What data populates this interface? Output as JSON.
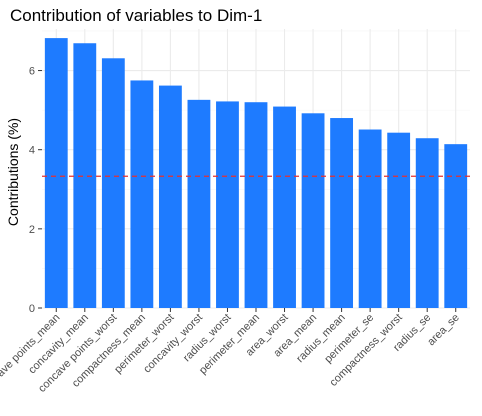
{
  "chart_data": {
    "type": "bar",
    "title": "Contribution of variables to Dim-1",
    "xlabel": "",
    "ylabel": "Contributions (%)",
    "categories": [
      "concave points_mean",
      "concavity_mean",
      "concave points_worst",
      "compactness_mean",
      "perimeter_worst",
      "concavity_worst",
      "radius_worst",
      "perimeter_mean",
      "area_worst",
      "area_mean",
      "radius_mean",
      "perimeter_se",
      "compactness_worst",
      "radius_se",
      "area_se"
    ],
    "values": [
      6.82,
      6.69,
      6.31,
      5.75,
      5.62,
      5.26,
      5.22,
      5.2,
      5.09,
      4.92,
      4.8,
      4.51,
      4.43,
      4.29,
      4.14
    ],
    "ylim": [
      0,
      7.05
    ],
    "yticks": [
      0,
      2,
      4,
      6
    ],
    "reference_line": 3.33,
    "grid": true,
    "colors": {
      "bar": "#1e7bff",
      "reference_line": "#e8302e",
      "grid_major": "#ebebeb",
      "grid_minor": "#f5f5f5"
    }
  }
}
